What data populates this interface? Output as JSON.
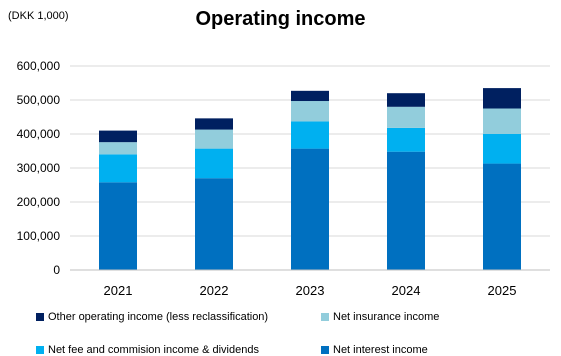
{
  "header": {
    "unit_label": "(DKK 1,000)",
    "title": "Operating income"
  },
  "colors": {
    "net_interest_income": "#0070C0",
    "net_fee_and_commission_income": "#00B0F0",
    "net_insurance_income": "#92CDDC",
    "other_operating_income": "#002060",
    "gridline": "#D9D9D9",
    "axis": "#BFBFBF"
  },
  "chart_data": {
    "type": "bar",
    "stacked": true,
    "title": "Operating income",
    "ylabel": "(DKK 1,000)",
    "xlabel": "",
    "categories": [
      "2021",
      "2022",
      "2023",
      "2024",
      "2025"
    ],
    "ylim": [
      0,
      600000
    ],
    "yticks": [
      0,
      100000,
      200000,
      300000,
      400000,
      500000,
      600000
    ],
    "ytick_labels": [
      "0",
      "100,000",
      "200,000",
      "300,000",
      "400,000",
      "500,000",
      "600,000"
    ],
    "grid": true,
    "legend_position": "bottom",
    "series": [
      {
        "name": "Net interest income",
        "color": "#0070C0",
        "values": [
          258000,
          270000,
          357000,
          348000,
          313000
        ]
      },
      {
        "name": "Net fee and commision income & dividends",
        "color": "#00B0F0",
        "values": [
          82000,
          87000,
          80000,
          70000,
          87000
        ]
      },
      {
        "name": "Net insurance income",
        "color": "#92CDDC",
        "values": [
          36000,
          56000,
          60000,
          62000,
          75000
        ]
      },
      {
        "name": "Other operating income (less reclassification)",
        "color": "#002060",
        "values": [
          34000,
          33000,
          30000,
          40000,
          60000
        ]
      }
    ]
  }
}
